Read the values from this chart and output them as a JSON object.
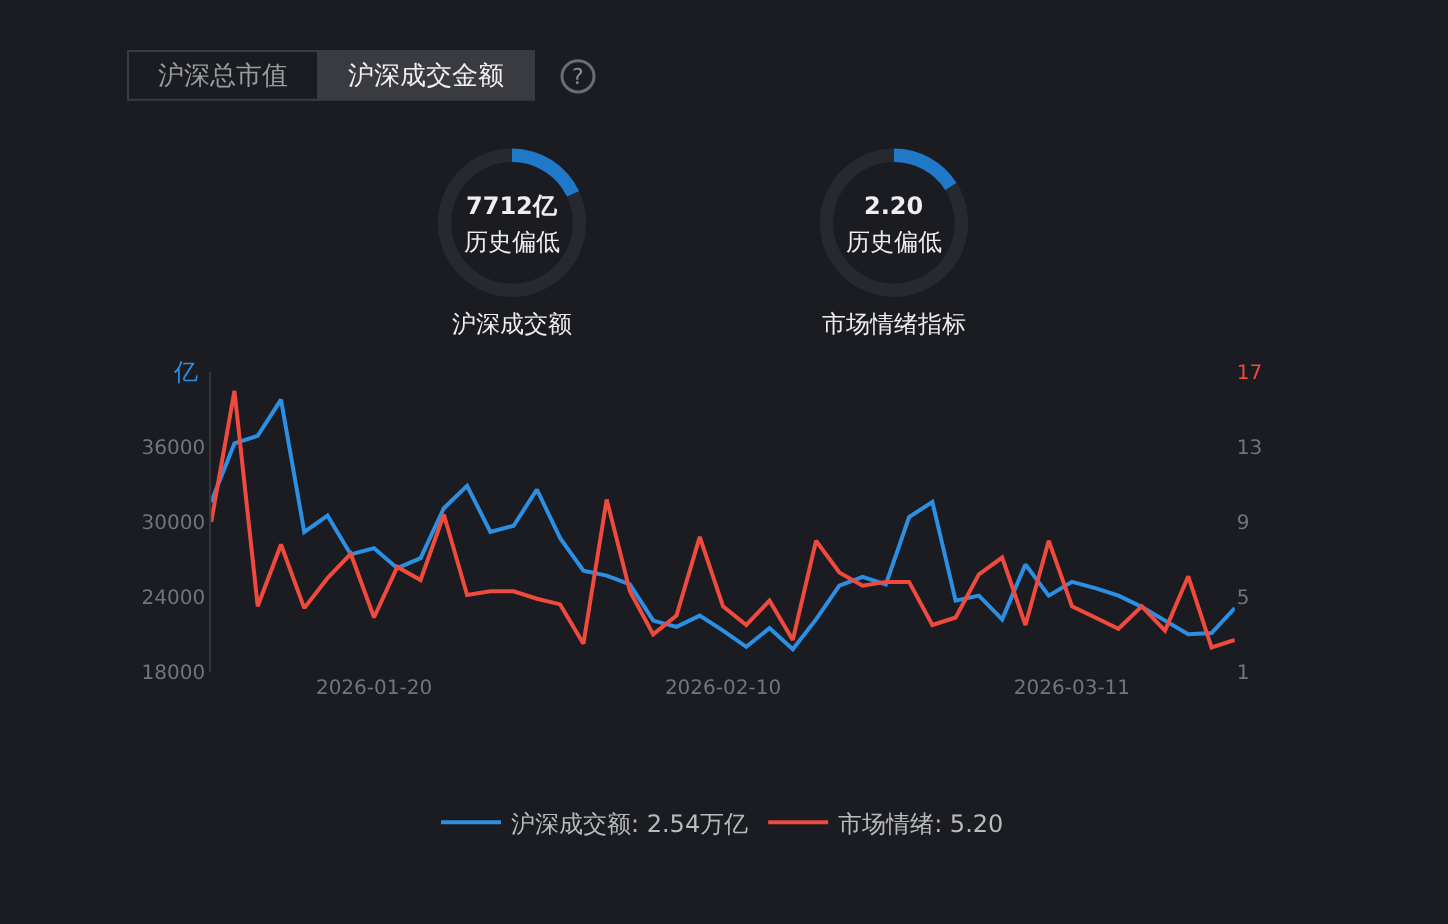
{
  "chart_data": [
    {
      "type": "other",
      "annotations": [
        "沪深总市值",
        "沪深成交金额",
        "?"
      ]
    },
    {
      "type": "donut",
      "title": "沪深成交额",
      "annotations": [
        "7712亿",
        "历史偏低"
      ],
      "categories": [
        null,
        null
      ],
      "values": [
        18,
        82
      ],
      "colors": [
        "#1f78c8",
        "#26292f"
      ]
    },
    {
      "type": "donut",
      "title": "市场情绪指标",
      "annotations": [
        "2.20",
        "历史偏低"
      ],
      "categories": [
        null,
        null
      ],
      "values": [
        16,
        84
      ],
      "colors": [
        "#1f78c8",
        "#26292f"
      ]
    },
    {
      "type": "line",
      "ylabel": "亿",
      "legend": "bottom",
      "categories": [
        null,
        null,
        null,
        null,
        null,
        null,
        null,
        "2026-01-20",
        null,
        null,
        null,
        null,
        null,
        null,
        null,
        null,
        null,
        null,
        null,
        null,
        null,
        null,
        "2026-02-10",
        null,
        null,
        null,
        null,
        null,
        null,
        null,
        null,
        null,
        null,
        null,
        null,
        null,
        null,
        "2026-03-11",
        null,
        null,
        null,
        null,
        null,
        null,
        null
      ],
      "series": [
        {
          "name": "沪深成交额: 2.54万亿",
          "color": "#2b8fe3",
          "values": [
            31600,
            36300,
            36900,
            39800,
            29200,
            30500,
            27400,
            27900,
            26300,
            27100,
            31100,
            32900,
            29200,
            29700,
            32600,
            28700,
            26100,
            25700,
            25000,
            22100,
            21600,
            22500,
            21300,
            20000,
            21500,
            19800,
            22200,
            24900,
            25600,
            25000,
            30400,
            31600,
            23700,
            24100,
            22200,
            26600,
            24100,
            25200,
            24700,
            24100,
            23200,
            22100,
            21000,
            21100,
            23100
          ]
        },
        {
          "name": "市场情绪: 5.20",
          "color": "#ef4a3d",
          "axis": "y2",
          "values": [
            9.0,
            16.0,
            4.5,
            7.8,
            4.4,
            6.0,
            7.3,
            3.9,
            6.6,
            5.9,
            9.4,
            5.1,
            5.3,
            5.3,
            4.9,
            4.6,
            2.5,
            10.2,
            5.3,
            3.0,
            4.0,
            8.2,
            4.5,
            3.5,
            4.8,
            2.7,
            8.0,
            6.3,
            5.6,
            5.8,
            5.8,
            3.5,
            3.9,
            6.2,
            7.1,
            3.5,
            8.0,
            4.5,
            3.9,
            3.3,
            4.5,
            3.2,
            6.1,
            2.3,
            2.7
          ]
        }
      ],
      "ylim": [
        18000,
        42000
      ],
      "yticks": [
        18000,
        24000,
        30000,
        36000
      ],
      "y2lim": [
        1,
        17
      ],
      "y2ticks": [
        1,
        5,
        9,
        13,
        17
      ]
    }
  ]
}
